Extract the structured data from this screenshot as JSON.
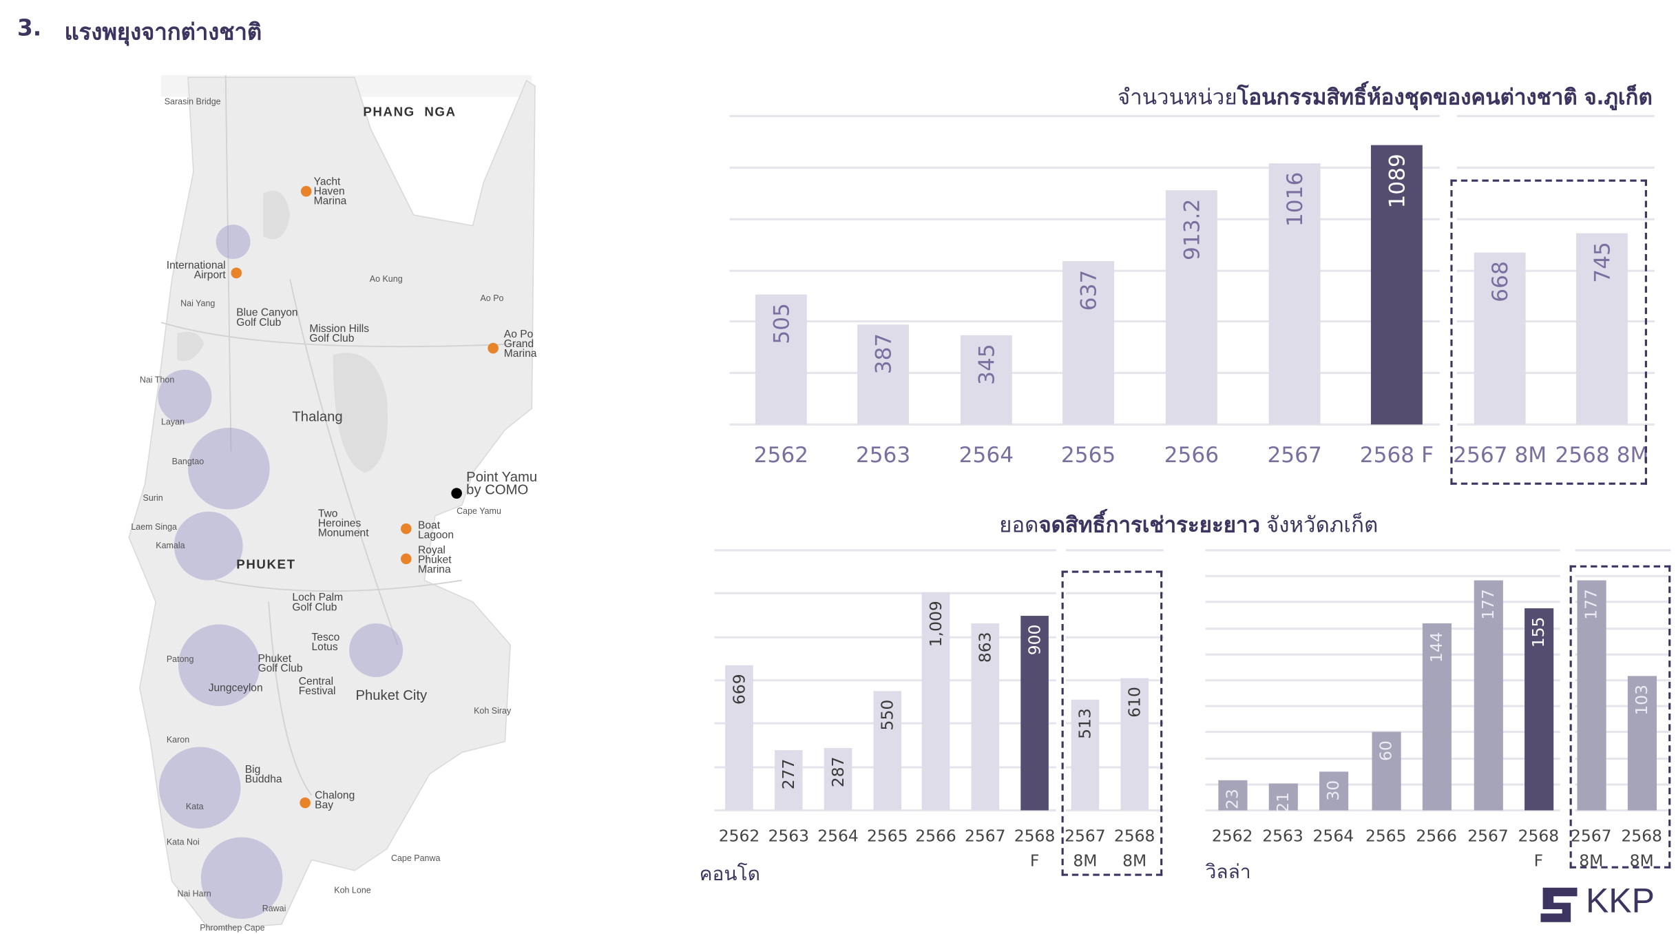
{
  "header": {
    "number": "3.",
    "title": "แรงพยุงจากต่างชาติ"
  },
  "map": {
    "places": [
      "Sarasin Bridge",
      "PHANG  NGA",
      "Yacht\nHaven\nMarina",
      "International\nAirport",
      "Nai Yang",
      "Blue Canyon\nGolf Club",
      "Mission Hills\nGolf Club",
      "Ao Kung",
      "Ao Po",
      "Ao Po\nGrand\nMarina",
      "Nai Thon",
      "Layan",
      "Thalang",
      "Bangtao",
      "Point Yamu\nby COMO",
      "Cape Yamu",
      "Surin",
      "Two\nHeroines\nMonument",
      "Boat\nLagoon",
      "Royal\nPhuket\nMarina",
      "Laem Singa",
      "Kamala",
      "PHUKET",
      "Loch Palm\nGolf Club",
      "Tesco\nLotus",
      "Patong",
      "Phuket\nGolf Club",
      "Jungceylon",
      "Central\nFestival",
      "Phuket City",
      "Koh Siray",
      "Karon",
      "Big\nBuddha",
      "Chalong\nBay",
      "Kata",
      "Kata Noi",
      "Cape Panwa",
      "Koh Lone",
      "Nai Harn",
      "Rawai",
      "Phromthep Cape"
    ],
    "colors": {
      "land": "#ececec",
      "highlight_circle": "#9c97c8",
      "marina_marker": "#e8832a",
      "hotel_marker": "#000000"
    }
  },
  "chart_data": [
    {
      "type": "bar",
      "title_normal": "จำนวนหน่วย",
      "title_bold": "โอนกรรมสิทธิ์ห้องชุดของคนต่างชาติ จ.ภูเก็ต",
      "categories": [
        "2562",
        "2563",
        "2564",
        "2565",
        "2566",
        "2567",
        "2568 F",
        "2567 8M",
        "2568 8M"
      ],
      "values": [
        505,
        387,
        345,
        637,
        913.2,
        1016,
        1089,
        668,
        745
      ],
      "value_labels": [
        "505",
        "387",
        "345",
        "637",
        "913.2",
        "1016",
        "1089",
        "668",
        "745"
      ],
      "highlight": "2568 F",
      "boxed": [
        "2567 8M",
        "2568 8M"
      ],
      "ylim": [
        0,
        1200
      ],
      "grid": true,
      "colors": {
        "bar": "#dfdcea",
        "highlight": "#554d70",
        "label": "#7a6f9e"
      }
    },
    {
      "type": "bar",
      "subtitle": "คอนโด",
      "categories": [
        "2562",
        "2563",
        "2564",
        "2565",
        "2566",
        "2567",
        "2568 F",
        "2567 8M",
        "2568 8M"
      ],
      "values": [
        669,
        277,
        287,
        550,
        1009,
        863,
        900,
        513,
        610
      ],
      "value_labels": [
        "669",
        "277",
        "287",
        "550",
        "1,009",
        "863",
        "900",
        "513",
        "610"
      ],
      "highlight": "2568 F",
      "boxed": [
        "2567 8M",
        "2568 8M"
      ],
      "ylim": [
        0,
        1200
      ],
      "grid": true,
      "colors": {
        "bar": "#dfdcea",
        "highlight": "#554d70",
        "label": "#3a3a3a"
      }
    },
    {
      "type": "bar",
      "subtitle": "วิลล่า",
      "categories": [
        "2562",
        "2563",
        "2564",
        "2565",
        "2566",
        "2567",
        "2568 F",
        "2567 8M",
        "2568 8M"
      ],
      "values": [
        23,
        21,
        30,
        60,
        144,
        177,
        155,
        177,
        103
      ],
      "value_labels": [
        "23",
        "21",
        "30",
        "60",
        "144",
        "177",
        "155",
        "177",
        "103"
      ],
      "highlight": "2568 F",
      "boxed": [
        "2567 8M",
        "2568 8M"
      ],
      "ylim": [
        0,
        200
      ],
      "grid": true,
      "colors": {
        "bar": "#a6a4b8",
        "highlight": "#554d70",
        "label": "#ecebf3"
      }
    }
  ],
  "lease_group_title": {
    "normal_1": "ยอด",
    "bold": "จดสิทธิ์การเช่าระยะยาว",
    "normal_2": " จังหวัดภเก็ต"
  },
  "logo": {
    "text": "KKP"
  }
}
